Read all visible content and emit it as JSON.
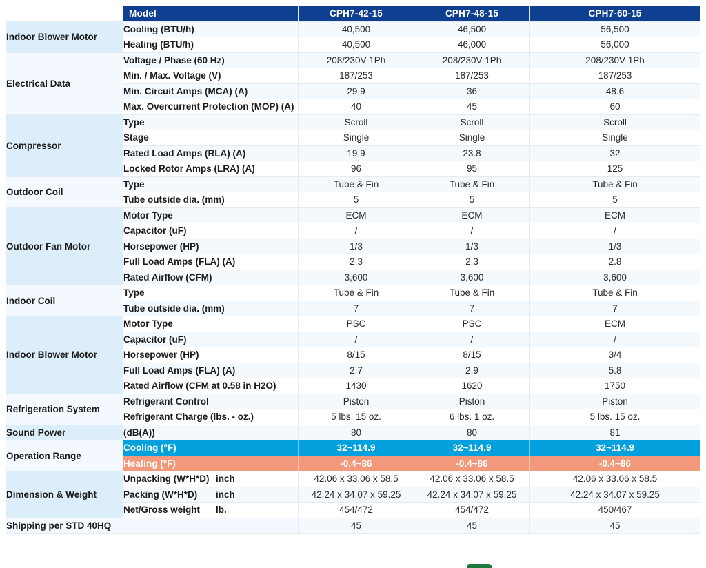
{
  "header": {
    "model_label": "Model",
    "models": [
      "CPH7-42-15",
      "CPH7-48-15",
      "CPH7-60-15"
    ]
  },
  "groups": [
    {
      "name": "Indoor Blower Motor",
      "rows": [
        {
          "param": "Cooling (BTU/h)",
          "values": [
            "40,500",
            "46,500",
            "56,500"
          ]
        },
        {
          "param": "Heating (BTU/h)",
          "values": [
            "40,500",
            "46,000",
            "56,000"
          ]
        }
      ]
    },
    {
      "name": "Electrical Data",
      "rows": [
        {
          "param": "Voltage / Phase (60 Hz)",
          "values": [
            "208/230V-1Ph",
            "208/230V-1Ph",
            "208/230V-1Ph"
          ]
        },
        {
          "param": "Min. / Max. Voltage (V)",
          "values": [
            "187/253",
            "187/253",
            "187/253"
          ]
        },
        {
          "param": "Min. Circuit Amps (MCA) (A)",
          "values": [
            "29.9",
            "36",
            "48.6"
          ]
        },
        {
          "param": "Max. Overcurrent Protection (MOP) (A)",
          "values": [
            "40",
            "45",
            "60"
          ]
        }
      ]
    },
    {
      "name": "Compressor",
      "rows": [
        {
          "param": "Type",
          "values": [
            "Scroll",
            "Scroll",
            "Scroll"
          ]
        },
        {
          "param": "Stage",
          "values": [
            "Single",
            "Single",
            "Single"
          ]
        },
        {
          "param": "Rated Load Amps (RLA) (A)",
          "values": [
            "19.9",
            "23.8",
            "32"
          ]
        },
        {
          "param": "Locked Rotor Amps (LRA) (A)",
          "values": [
            "96",
            "95",
            "125"
          ]
        }
      ]
    },
    {
      "name": "Outdoor Coil",
      "rows": [
        {
          "param": "Type",
          "values": [
            "Tube & Fin",
            "Tube & Fin",
            "Tube & Fin"
          ]
        },
        {
          "param": "Tube outside dia. (mm)",
          "values": [
            "5",
            "5",
            "5"
          ]
        }
      ]
    },
    {
      "name": "Outdoor Fan Motor",
      "rows": [
        {
          "param": "Motor Type",
          "values": [
            "ECM",
            "ECM",
            "ECM"
          ]
        },
        {
          "param": "Capacitor (uF)",
          "values": [
            "/",
            "/",
            "/"
          ]
        },
        {
          "param": "Horsepower (HP)",
          "values": [
            "1/3",
            "1/3",
            "1/3"
          ]
        },
        {
          "param": "Full Load Amps (FLA) (A)",
          "values": [
            "2.3",
            "2.3",
            "2.8"
          ]
        },
        {
          "param": "Rated Airflow (CFM)",
          "values": [
            "3,600",
            "3,600",
            "3,600"
          ]
        }
      ]
    },
    {
      "name": "Indoor Coil",
      "rows": [
        {
          "param": "Type",
          "values": [
            "Tube & Fin",
            "Tube & Fin",
            "Tube & Fin"
          ]
        },
        {
          "param": "Tube outside dia. (mm)",
          "values": [
            "7",
            "7",
            "7"
          ]
        }
      ]
    },
    {
      "name": "Indoor Blower Motor",
      "rows": [
        {
          "param": "Motor Type",
          "values": [
            "PSC",
            "PSC",
            "ECM"
          ]
        },
        {
          "param": "Capacitor (uF)",
          "values": [
            "/",
            "/",
            "/"
          ]
        },
        {
          "param": "Horsepower (HP)",
          "values": [
            "8/15",
            "8/15",
            "3/4"
          ]
        },
        {
          "param": "Full Load Amps (FLA) (A)",
          "values": [
            "2.7",
            "2.9",
            "5.8"
          ]
        },
        {
          "param": "Rated Airflow (CFM at 0.58 in H2O)",
          "values": [
            "1430",
            "1620",
            "1750"
          ]
        }
      ]
    },
    {
      "name": "Refrigeration System",
      "rows": [
        {
          "param": "Refrigerant Control",
          "values": [
            "Piston",
            "Piston",
            "Piston"
          ]
        },
        {
          "param": "Refrigerant Charge (lbs. - oz.)",
          "values": [
            "5 lbs. 15 oz.",
            "6 lbs. 1 oz.",
            "5 lbs. 15 oz."
          ]
        }
      ]
    },
    {
      "name": "Sound Power",
      "rows": [
        {
          "param": "(dB(A))",
          "values": [
            "80",
            "80",
            "81"
          ]
        }
      ]
    },
    {
      "name": "Operation Range",
      "rows": [
        {
          "param": "Cooling (°F)",
          "values": [
            "32~114.9",
            "32~114.9",
            "32~114.9"
          ],
          "style": "cool"
        },
        {
          "param": "Heating (°F)",
          "values": [
            "-0.4~86",
            "-0.4~86",
            "-0.4~86"
          ],
          "style": "heat"
        }
      ]
    },
    {
      "name": "Dimension & Weight",
      "rows": [
        {
          "param": "Unpacking (W*H*D)",
          "unit": "inch",
          "values": [
            "42.06 x 33.06 x 58.5",
            "42.06 x 33.06 x 58.5",
            "42.06 x 33.06 x 58.5"
          ]
        },
        {
          "param": "Packing (W*H*D)",
          "unit": "inch",
          "values": [
            "42.24 x 34.07 x 59.25",
            "42.24 x 34.07 x 59.25",
            "42.24 x 34.07 x 59.25"
          ]
        },
        {
          "param": "Net/Gross weight",
          "unit": "lb.",
          "values": [
            "454/472",
            "454/472",
            "450/467"
          ]
        }
      ]
    },
    {
      "name": "Shipping per STD 40HQ",
      "rows": [
        {
          "param": "",
          "values": [
            "45",
            "45",
            "45"
          ]
        }
      ]
    }
  ],
  "colors": {
    "header_bg": "#0e3f91",
    "cooling_bg": "#02a0dd",
    "heating_bg": "#f1997a",
    "group_bg_a": "#dceefa",
    "group_bg_b": "#f3f9fe"
  }
}
